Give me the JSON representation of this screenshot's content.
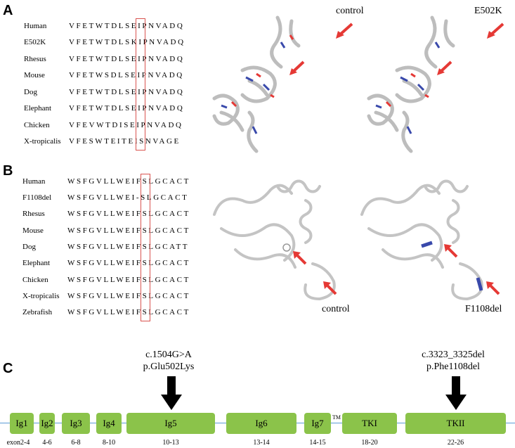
{
  "panel_a": {
    "letter": "A",
    "species": [
      "Human",
      "E502K",
      "Rhesus",
      "Mouse",
      "Dog",
      "Elephant",
      "Chicken",
      "X-tropicalis"
    ],
    "sequences": [
      "VFETWTDLSEIPNVADQ",
      "VFETWTDLSKIPNVADQ",
      "VFETWTDLSEIPNVADQ",
      "VFETWSDLSEIPNVADQ",
      "VFETWTDLSEIPNVADQ",
      "VFETWTDLSEIPNVADQ",
      "VFEVWTDISEIPNVADQ",
      "VFESWTEITEISNVAGE"
    ],
    "labels": {
      "left": "control",
      "right": "E502K"
    }
  },
  "panel_b": {
    "letter": "B",
    "species": [
      "Human",
      "F1108del",
      "Rhesus",
      "Mouse",
      "Dog",
      "Elephant",
      "Chicken",
      "X-tropicalis",
      "Zebrafish"
    ],
    "sequences": [
      "WSFGVLLWEIFSLGCACT",
      "WSFGVLLWEI-SLGCACT",
      "WSFGVLLWEIFSLGCACT",
      "WSFGVLLWEIFSLGCACT",
      "WSFGVLLWEIFSLGCATT",
      "WSFGVLLWEIFSLGCACT",
      "WSFGVLLWEIFSLGCACT",
      "WSFGVLLWEIFSLGCACT",
      "WSFGVLLWEIFSLGCACT"
    ],
    "labels": {
      "left": "control",
      "right": "F1108del"
    }
  },
  "panel_c": {
    "letter": "C",
    "mutation1": {
      "line1": "c.1504G>A",
      "line2": "p.Glu502Lys"
    },
    "mutation2": {
      "line1": "c.3323_3325del",
      "line2": "p.Phe1108del"
    },
    "domains": [
      {
        "name": "Ig1",
        "exon": "exon2-4"
      },
      {
        "name": "Ig2",
        "exon": "4-6"
      },
      {
        "name": "Ig3",
        "exon": "6-8"
      },
      {
        "name": "Ig4",
        "exon": "8-10"
      },
      {
        "name": "Ig5",
        "exon": "10-13"
      },
      {
        "name": "Ig6",
        "exon": "13-14"
      },
      {
        "name": "Ig7",
        "exon": "14-15"
      },
      {
        "name": "TKI",
        "exon": "18-20"
      },
      {
        "name": "TKII",
        "exon": "22-26"
      }
    ],
    "tm_label": "TM"
  },
  "colors": {
    "domain_fill": "#8bc34a",
    "highlight_box": "#d9534f",
    "arrow_red": "#e53935",
    "protein_line": "#5b9bd5",
    "helix_blue": "#3949ab"
  }
}
